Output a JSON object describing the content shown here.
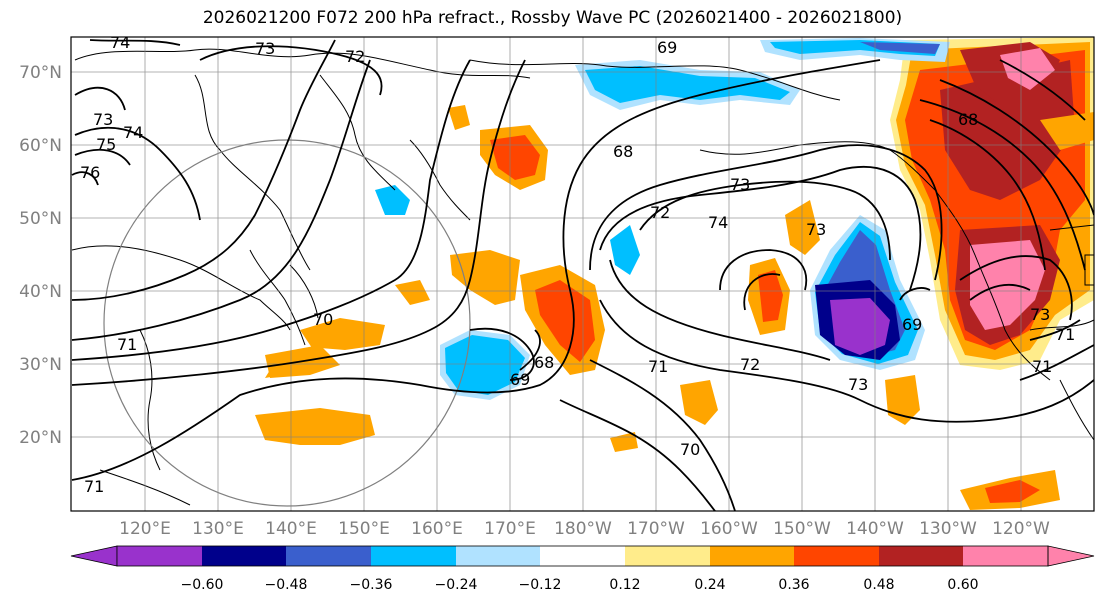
{
  "title": "2026021200 F072 200 hPa refract., Rossby Wave PC (2026021400 - 2026021800)",
  "lat_ticks": [
    "70°N",
    "60°N",
    "50°N",
    "40°N",
    "30°N",
    "20°N"
  ],
  "lon_ticks": [
    "120°E",
    "130°E",
    "140°E",
    "150°E",
    "160°E",
    "170°E",
    "180°W",
    "170°W",
    "160°W",
    "150°W",
    "140°W",
    "130°W",
    "120°W"
  ],
  "contour_labels": [
    "74",
    "73",
    "72",
    "75",
    "74",
    "76",
    "73",
    "71",
    "70",
    "69",
    "68",
    "68",
    "69",
    "73",
    "72",
    "74",
    "73",
    "71",
    "72",
    "73",
    "69",
    "68",
    "73",
    "71",
    "70",
    "71",
    "71"
  ],
  "colorbar": {
    "tick_labels": [
      "−0.60",
      "−0.48",
      "−0.36",
      "−0.24",
      "−0.12",
      "0.12",
      "0.24",
      "0.36",
      "0.48",
      "0.60"
    ],
    "colors": [
      "#9932cc",
      "#00008b",
      "#3a5fcd",
      "#00bfff",
      "#b0e2ff",
      "#ffffff",
      "#ffec8b",
      "#ffa500",
      "#ff4500",
      "#b22222",
      "#ff82ab"
    ],
    "under_color": "#9932cc",
    "over_color": "#ff82ab"
  },
  "colors": {
    "land_line": "#000000",
    "grid": "#808080",
    "contour": "#000000",
    "circle": "#808080"
  }
}
